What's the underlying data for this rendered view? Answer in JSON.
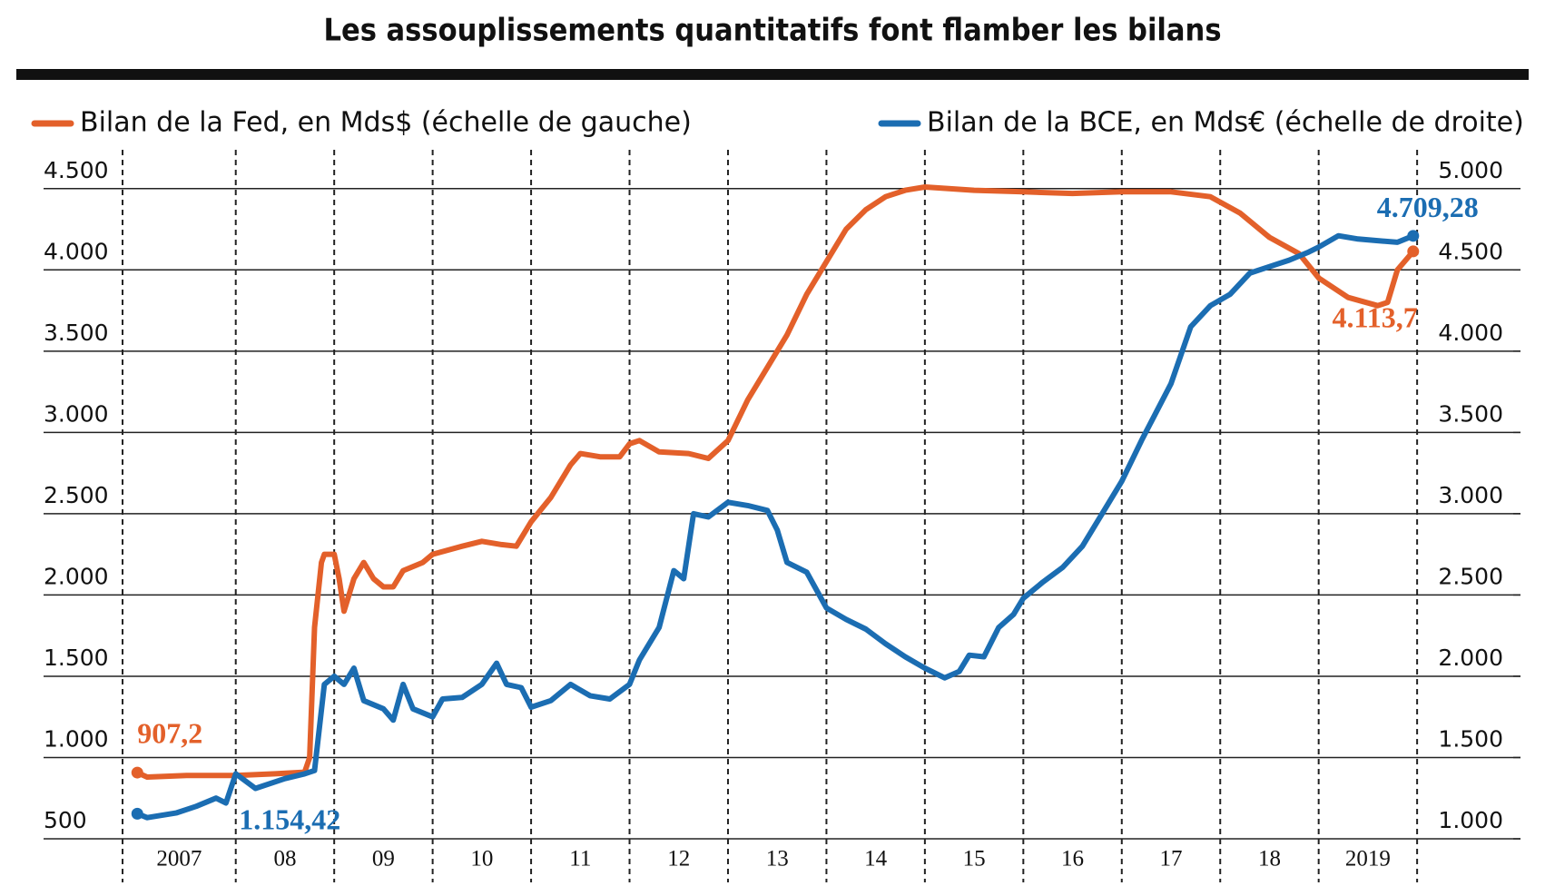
{
  "chart_data": {
    "type": "line",
    "title": "Les assouplissements quantitatifs font flamber les bilans",
    "categories": [
      "2007",
      "08",
      "09",
      "10",
      "11",
      "12",
      "13",
      "14",
      "15",
      "16",
      "17",
      "18",
      "2019"
    ],
    "xticks": [
      2006.85,
      2008,
      2009,
      2010,
      2011,
      2012,
      2013,
      2014,
      2015,
      2016,
      2017,
      2018,
      2019,
      2020
    ],
    "xlim": [
      2006.85,
      2021.05
    ],
    "ylim": [
      500,
      4750
    ],
    "yticks": [
      {
        "value": 500,
        "label": "500"
      },
      {
        "value": 1000,
        "label": "1.000"
      },
      {
        "value": 1500,
        "label": "1.500"
      },
      {
        "value": 2000,
        "label": "2.000"
      },
      {
        "value": 2500,
        "label": "2.500"
      },
      {
        "value": 3000,
        "label": "3.000"
      },
      {
        "value": 3500,
        "label": "3.500"
      },
      {
        "value": 4000,
        "label": "4.000"
      },
      {
        "value": 4500,
        "label": "4.500"
      }
    ],
    "y2lim": [
      1000,
      5250
    ],
    "y2ticks": [
      {
        "value": 1000,
        "label": "1.000"
      },
      {
        "value": 1500,
        "label": "1.500"
      },
      {
        "value": 2000,
        "label": "2.000"
      },
      {
        "value": 2500,
        "label": "2.500"
      },
      {
        "value": 3000,
        "label": "3.000"
      },
      {
        "value": 3500,
        "label": "3.500"
      },
      {
        "value": 4000,
        "label": "4.000"
      },
      {
        "value": 4500,
        "label": "4.500"
      },
      {
        "value": 5000,
        "label": "5.000"
      }
    ],
    "grid": true,
    "series": [
      {
        "name": "Bilan de la Fed, en Mds$ (échelle de gauche)",
        "color": "#e3602a",
        "axis": "y",
        "x": [
          2007.0,
          2007.1,
          2007.5,
          2008.0,
          2008.4,
          2008.7,
          2008.75,
          2008.8,
          2008.87,
          2008.9,
          2009.0,
          2009.05,
          2009.1,
          2009.2,
          2009.3,
          2009.4,
          2009.5,
          2009.6,
          2009.7,
          2009.9,
          2010.0,
          2010.3,
          2010.5,
          2010.7,
          2010.85,
          2011.0,
          2011.2,
          2011.4,
          2011.5,
          2011.7,
          2011.9,
          2012.0,
          2012.1,
          2012.3,
          2012.6,
          2012.8,
          2013.0,
          2013.2,
          2013.4,
          2013.6,
          2013.8,
          2014.0,
          2014.2,
          2014.4,
          2014.6,
          2014.8,
          2015.0,
          2015.5,
          2016.0,
          2016.5,
          2017.0,
          2017.5,
          2017.9,
          2018.2,
          2018.5,
          2018.8,
          2019.0,
          2019.3,
          2019.6,
          2019.7,
          2019.8,
          2019.96
        ],
        "values": [
          907.2,
          880,
          890,
          890,
          900,
          910,
          1000,
          1800,
          2200,
          2250,
          2250,
          2100,
          1900,
          2100,
          2200,
          2100,
          2050,
          2050,
          2150,
          2200,
          2250,
          2300,
          2330,
          2310,
          2300,
          2450,
          2600,
          2800,
          2870,
          2850,
          2850,
          2930,
          2950,
          2880,
          2870,
          2840,
          2950,
          3200,
          3400,
          3600,
          3850,
          4050,
          4250,
          4370,
          4450,
          4490,
          4510,
          4490,
          4480,
          4470,
          4480,
          4480,
          4450,
          4350,
          4200,
          4100,
          3950,
          3830,
          3780,
          3800,
          4000,
          4113.7
        ],
        "value_labels": [
          "907,2",
          null,
          null,
          null,
          null,
          null,
          null,
          null,
          null,
          null,
          null,
          null,
          null,
          null,
          null,
          null,
          null,
          null,
          null,
          null,
          null,
          null,
          null,
          null,
          null,
          null,
          null,
          null,
          null,
          null,
          null,
          null,
          null,
          null,
          null,
          null,
          null,
          null,
          null,
          null,
          null,
          null,
          null,
          null,
          null,
          null,
          null,
          null,
          null,
          null,
          null,
          null,
          null,
          null,
          null,
          null,
          null,
          null,
          null,
          null,
          null,
          "4.113,7"
        ]
      },
      {
        "name": "Bilan de la BCE, en Mds€ (échelle de droite)",
        "color": "#1b6db2",
        "axis": "y2",
        "x": [
          2007.0,
          2007.1,
          2007.4,
          2007.6,
          2007.8,
          2007.9,
          2008.0,
          2008.2,
          2008.5,
          2008.7,
          2008.8,
          2008.9,
          2009.0,
          2009.1,
          2009.2,
          2009.3,
          2009.5,
          2009.6,
          2009.7,
          2009.8,
          2010.0,
          2010.1,
          2010.3,
          2010.5,
          2010.65,
          2010.75,
          2010.9,
          2011.0,
          2011.2,
          2011.4,
          2011.6,
          2011.8,
          2012.0,
          2012.1,
          2012.3,
          2012.45,
          2012.55,
          2012.65,
          2012.8,
          2013.0,
          2013.2,
          2013.4,
          2013.5,
          2013.6,
          2013.8,
          2014.0,
          2014.2,
          2014.4,
          2014.6,
          2014.8,
          2015.0,
          2015.2,
          2015.35,
          2015.45,
          2015.6,
          2015.75,
          2015.9,
          2016.0,
          2016.2,
          2016.4,
          2016.6,
          2016.8,
          2017.0,
          2017.2,
          2017.5,
          2017.7,
          2017.9,
          2018.1,
          2018.3,
          2018.5,
          2018.7,
          2018.9,
          2019.0,
          2019.2,
          2019.4,
          2019.6,
          2019.8,
          2019.96
        ],
        "values": [
          1154.42,
          1130,
          1160,
          1200,
          1250,
          1220,
          1400,
          1310,
          1370,
          1400,
          1420,
          1950,
          2000,
          1950,
          2050,
          1850,
          1800,
          1730,
          1950,
          1800,
          1750,
          1860,
          1870,
          1950,
          2080,
          1950,
          1930,
          1810,
          1850,
          1950,
          1880,
          1860,
          1950,
          2100,
          2300,
          2650,
          2600,
          3000,
          2980,
          3070,
          3050,
          3020,
          2900,
          2700,
          2640,
          2420,
          2350,
          2290,
          2200,
          2120,
          2050,
          1990,
          2030,
          2130,
          2120,
          2300,
          2380,
          2480,
          2580,
          2670,
          2800,
          3000,
          3200,
          3450,
          3800,
          4150,
          4280,
          4350,
          4480,
          4520,
          4560,
          4610,
          4640,
          4710,
          4690,
          4680,
          4670,
          4709.28
        ],
        "value_labels": [
          "1.154,42",
          null,
          null,
          null,
          null,
          null,
          null,
          null,
          null,
          null,
          null,
          null,
          null,
          null,
          null,
          null,
          null,
          null,
          null,
          null,
          null,
          null,
          null,
          null,
          null,
          null,
          null,
          null,
          null,
          null,
          null,
          null,
          null,
          null,
          null,
          null,
          null,
          null,
          null,
          null,
          null,
          null,
          null,
          null,
          null,
          null,
          null,
          null,
          null,
          null,
          null,
          null,
          null,
          null,
          null,
          null,
          null,
          null,
          null,
          null,
          null,
          null,
          null,
          null,
          null,
          null,
          null,
          null,
          null,
          null,
          null,
          null,
          null,
          null,
          null,
          null,
          null,
          "4.709,28"
        ]
      }
    ]
  }
}
